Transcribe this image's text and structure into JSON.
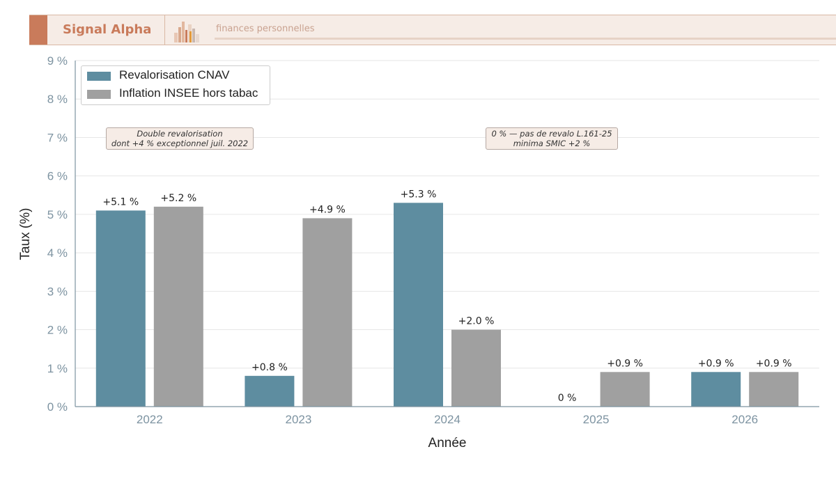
{
  "header": {
    "brand": "Signal Alpha",
    "tagline": "finances personnelles"
  },
  "colors": {
    "accent": "#c97b5b",
    "cnav": "#5e8da0",
    "insee": "#a0a0a0",
    "axis": "#7d93a1"
  },
  "chart_data": {
    "type": "bar",
    "categories": [
      "2022",
      "2023",
      "2024",
      "2025",
      "2026"
    ],
    "series": [
      {
        "name": "Revalorisation CNAV",
        "values": [
          5.1,
          0.8,
          5.3,
          0,
          0.9
        ],
        "labels": [
          "+5.1 %",
          "+0.8 %",
          "+5.3 %",
          "0 %",
          "+0.9 %"
        ]
      },
      {
        "name": "Inflation INSEE hors tabac",
        "values": [
          5.2,
          4.9,
          2.0,
          0.9,
          0.9
        ],
        "labels": [
          "+5.2 %",
          "+4.9 %",
          "+2.0 %",
          "+0.9 %",
          "+0.9 %"
        ]
      }
    ],
    "xlabel": "Année",
    "ylabel": "Taux (%)",
    "ylim": [
      0,
      9
    ],
    "yticks": [
      "0 %",
      "1 %",
      "2 %",
      "3 %",
      "4 %",
      "5 %",
      "6 %",
      "7 %",
      "8 %",
      "9 %"
    ],
    "grid": true,
    "legend_position": "top-left",
    "annotations": [
      {
        "lines": [
          "Double revalorisation",
          "dont +4 % exceptionnel juil. 2022"
        ]
      },
      {
        "lines": [
          "0 % — pas de revalo L.161-25",
          "minima SMIC +2 %"
        ]
      }
    ]
  }
}
